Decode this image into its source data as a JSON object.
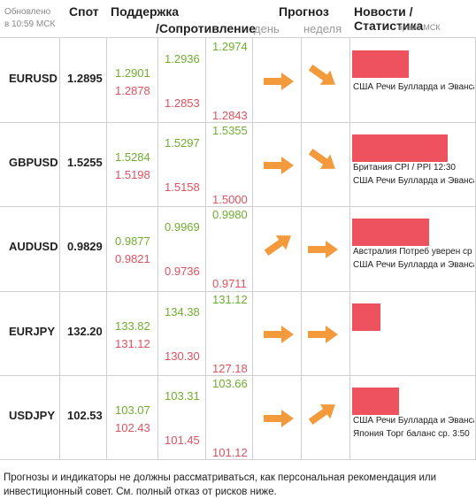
{
  "header": {
    "updated": "Обновлено в 10:59 МСК",
    "spot": "Спот",
    "support": "Поддержка",
    "resistance": "/Сопротивление",
    "forecast": "Прогноз",
    "day": "день",
    "week": "неделя",
    "news": "Новости / Статистика",
    "time_msk": "время МСК"
  },
  "colors": {
    "support": "#6fae2f",
    "resistance": "#e0505e",
    "arrow": "#f39a3c",
    "bar": "#ee525e"
  },
  "rows": [
    {
      "symbol": "EURUSD",
      "spot": "1.2895",
      "g1": "1.2901",
      "g2": "1.2936",
      "g3": "1.2974",
      "r1": "1.2878",
      "r2": "1.2853",
      "r3": "1.2843",
      "day_icon": "arrow-right-icon",
      "week_icon": "arrow-down-right-icon",
      "bar_fraction": 0.59,
      "news": [
        "США Речи Булларда и Эванса"
      ]
    },
    {
      "symbol": "GBPUSD",
      "spot": "1.5255",
      "g1": "1.5284",
      "g2": "1.5297",
      "g3": "1.5355",
      "r1": "1.5198",
      "r2": "1.5158",
      "r3": "1.5000",
      "day_icon": "arrow-right-icon",
      "week_icon": "arrow-down-right-icon",
      "bar_fraction": 1.0,
      "news": [
        "Британия CPI / PPI 12:30",
        "США Речи Булларда и Эванса"
      ]
    },
    {
      "symbol": "AUDUSD",
      "spot": "0.9829",
      "g1": "0.9877",
      "g2": "0.9969",
      "g3": "0.9980",
      "r1": "0.9821",
      "r2": "0.9736",
      "r3": "0.9711",
      "day_icon": "arrow-up-right-icon",
      "week_icon": "arrow-right-icon",
      "bar_fraction": 0.81,
      "news": [
        "Австралия Потреб уверен ср",
        "США Речи Булларда и Эванса"
      ]
    },
    {
      "symbol": "EURJPY",
      "spot": "132.20",
      "g1": "133.82",
      "g2": "134.38",
      "g3": "131.12",
      "r1": "131.12",
      "r2": "130.30",
      "r3": "127.18",
      "day_icon": "arrow-right-icon",
      "week_icon": "arrow-right-icon",
      "bar_fraction": 0.3,
      "news": []
    },
    {
      "symbol": "USDJPY",
      "spot": "102.53",
      "g1": "103.07",
      "g2": "103.31",
      "g3": "103.66",
      "r1": "102.43",
      "r2": "101.45",
      "r3": "101.12",
      "day_icon": "arrow-right-icon",
      "week_icon": "arrow-up-right-icon",
      "bar_fraction": 0.49,
      "news": [
        "США Речи Булларда и Эванса",
        "Япония Торг баланс ср. 3:50"
      ]
    }
  ],
  "footer": {
    "disclaimer": "Прогнозы и индикаторы не должны рассматриваться, как персональная рекомендация или инвестиционный совет. См. полный отказ от рисков ниже."
  }
}
